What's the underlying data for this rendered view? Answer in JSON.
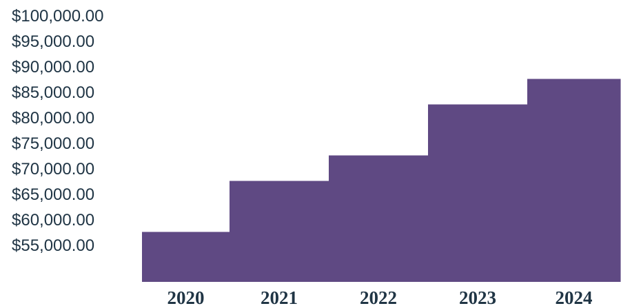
{
  "chart_data": {
    "type": "area",
    "step": true,
    "categories": [
      "2020",
      "2021",
      "2022",
      "2023",
      "2024"
    ],
    "values": [
      57500,
      67500,
      72500,
      82500,
      87500
    ],
    "yticks": [
      {
        "value": 100000,
        "label": "$100,000.00"
      },
      {
        "value": 95000,
        "label": "$95,000.00"
      },
      {
        "value": 90000,
        "label": "$90,000.00"
      },
      {
        "value": 85000,
        "label": "$85,000.00"
      },
      {
        "value": 80000,
        "label": "$80,000.00"
      },
      {
        "value": 75000,
        "label": "$75,000.00"
      },
      {
        "value": 70000,
        "label": "$70,000.00"
      },
      {
        "value": 65000,
        "label": "$65,000.00"
      },
      {
        "value": 60000,
        "label": "$60,000.00"
      },
      {
        "value": 55000,
        "label": "$55,000.00"
      }
    ],
    "ylim": [
      47500,
      102500
    ],
    "fill_color": "#5f4983",
    "title": "",
    "xlabel": "",
    "ylabel": "",
    "grid": false,
    "legend": "none"
  }
}
